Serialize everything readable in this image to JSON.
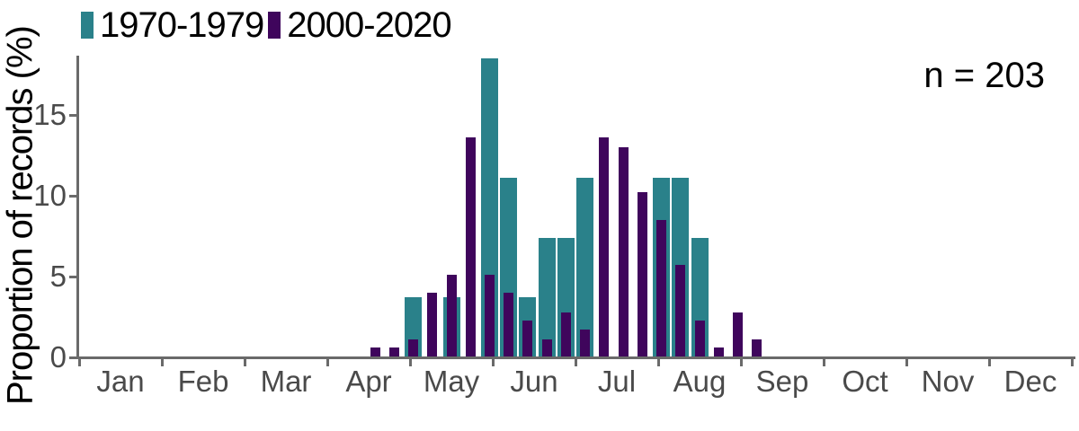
{
  "chart_data": {
    "type": "bar",
    "title": "",
    "xlabel": "",
    "ylabel": "Proportion of records (%)",
    "annotation": "n = 203",
    "legend_position": "top-left",
    "grid": false,
    "x_binning": "week-of-year (weekly bars, weeks 16-36)",
    "x_tick_labels": [
      "Jan",
      "Feb",
      "Mar",
      "Apr",
      "May",
      "Jun",
      "Jul",
      "Aug",
      "Sep",
      "Oct",
      "Nov",
      "Dec"
    ],
    "y_ticks": [
      0,
      5,
      10,
      15
    ],
    "ylim": [
      0,
      18.8
    ],
    "weeks": [
      16,
      17,
      18,
      19,
      20,
      21,
      22,
      23,
      24,
      25,
      26,
      27,
      28,
      29,
      30,
      31,
      32,
      33,
      34,
      35,
      36
    ],
    "series": [
      {
        "name": "1970-1979",
        "color": "#2a818a",
        "values": [
          0,
          0,
          3.7,
          0,
          3.7,
          0,
          18.5,
          11.1,
          3.7,
          7.4,
          7.4,
          11.1,
          0,
          0,
          0,
          11.1,
          11.1,
          7.4,
          0,
          0,
          0
        ]
      },
      {
        "name": "2000-2020",
        "color": "#3f055c",
        "values": [
          0.6,
          0.6,
          1.1,
          4.0,
          5.1,
          13.6,
          5.1,
          4.0,
          2.3,
          1.1,
          2.8,
          1.7,
          13.6,
          13.0,
          10.2,
          8.5,
          5.7,
          2.3,
          0.6,
          2.8,
          1.1
        ]
      }
    ],
    "colors": {
      "axis": "#6a6a6a",
      "tick_labels": "#4a4a4a",
      "text": "#000000"
    }
  }
}
